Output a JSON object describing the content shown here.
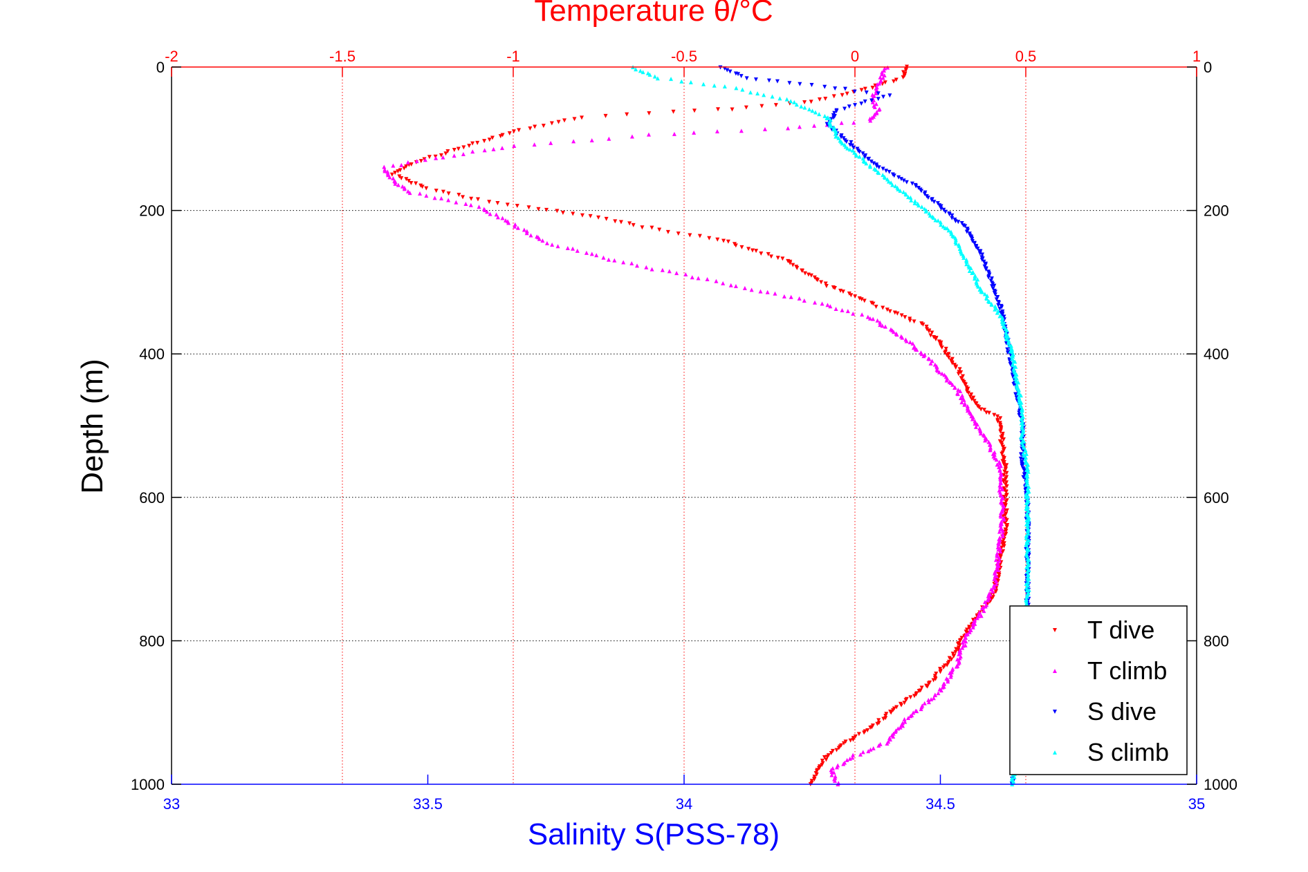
{
  "chart_data": {
    "type": "scatter",
    "title": "Temperature θ/°C",
    "xlabel_top": "Temperature θ/°C",
    "xlabel_bottom": "Salinity S(PSS-78)",
    "ylabel": "Depth (m)",
    "x_top_lim": [
      -2,
      1
    ],
    "x_top_ticks": [
      "-2",
      "-1.5",
      "-1",
      "-0.5",
      "0",
      "0.5",
      "1"
    ],
    "x_bottom_lim": [
      33,
      35
    ],
    "x_bottom_ticks": [
      "33",
      "33.5",
      "34",
      "34.5",
      "35"
    ],
    "ylim": [
      0,
      1000
    ],
    "y_reversed": true,
    "y_ticks": [
      "0",
      "200",
      "400",
      "600",
      "800",
      "1000"
    ],
    "y_tick_values": [
      0,
      200,
      400,
      600,
      800,
      1000
    ],
    "grid": true,
    "legend_position": "bottom-right",
    "colors": {
      "temperature_axis": "#ff0000",
      "salinity_axis": "#0000ff",
      "t_dive": "#ff0000",
      "t_climb": "#ff00ff",
      "s_dive": "#0000ff",
      "s_climb": "#00ffff"
    },
    "series": [
      {
        "name": "T dive",
        "axis": "temperature",
        "marker": "triangle-down",
        "color": "#ff0000",
        "points": [
          [
            0.15,
            0
          ],
          [
            0.14,
            15
          ],
          [
            0.0,
            35
          ],
          [
            -0.15,
            50
          ],
          [
            -0.4,
            60
          ],
          [
            -0.8,
            70
          ],
          [
            -1.0,
            90
          ],
          [
            -1.1,
            105
          ],
          [
            -1.2,
            120
          ],
          [
            -1.3,
            135
          ],
          [
            -1.35,
            150
          ],
          [
            -1.25,
            170
          ],
          [
            -1.1,
            185
          ],
          [
            -0.9,
            200
          ],
          [
            -0.75,
            210
          ],
          [
            -0.6,
            225
          ],
          [
            -0.4,
            240
          ],
          [
            -0.2,
            270
          ],
          [
            -0.1,
            300
          ],
          [
            0.0,
            320
          ],
          [
            0.1,
            340
          ],
          [
            0.2,
            360
          ],
          [
            0.25,
            385
          ],
          [
            0.3,
            420
          ],
          [
            0.33,
            450
          ],
          [
            0.35,
            470
          ],
          [
            0.42,
            490
          ],
          [
            0.43,
            520
          ],
          [
            0.44,
            560
          ],
          [
            0.44,
            600
          ],
          [
            0.44,
            640
          ],
          [
            0.43,
            670
          ],
          [
            0.42,
            700
          ],
          [
            0.41,
            730
          ],
          [
            0.37,
            760
          ],
          [
            0.33,
            785
          ],
          [
            0.29,
            820
          ],
          [
            0.22,
            860
          ],
          [
            0.13,
            890
          ],
          [
            0.05,
            920
          ],
          [
            -0.05,
            950
          ],
          [
            -0.1,
            970
          ],
          [
            -0.13,
            1000
          ]
        ]
      },
      {
        "name": "T climb",
        "axis": "temperature",
        "marker": "triangle-up",
        "color": "#ff00ff",
        "points": [
          [
            0.09,
            0
          ],
          [
            0.07,
            25
          ],
          [
            0.05,
            45
          ],
          [
            0.07,
            60
          ],
          [
            0.04,
            75
          ],
          [
            -0.2,
            85
          ],
          [
            -0.6,
            95
          ],
          [
            -1.0,
            110
          ],
          [
            -1.2,
            125
          ],
          [
            -1.38,
            140
          ],
          [
            -1.35,
            160
          ],
          [
            -1.3,
            175
          ],
          [
            -1.1,
            195
          ],
          [
            -1.0,
            220
          ],
          [
            -0.9,
            245
          ],
          [
            -0.7,
            270
          ],
          [
            -0.5,
            290
          ],
          [
            -0.3,
            310
          ],
          [
            -0.1,
            330
          ],
          [
            0.05,
            350
          ],
          [
            0.15,
            380
          ],
          [
            0.22,
            410
          ],
          [
            0.3,
            450
          ],
          [
            0.33,
            480
          ],
          [
            0.37,
            510
          ],
          [
            0.42,
            550
          ],
          [
            0.43,
            600
          ],
          [
            0.43,
            640
          ],
          [
            0.42,
            680
          ],
          [
            0.41,
            720
          ],
          [
            0.37,
            760
          ],
          [
            0.33,
            790
          ],
          [
            0.3,
            830
          ],
          [
            0.25,
            870
          ],
          [
            0.15,
            910
          ],
          [
            0.1,
            940
          ],
          [
            0.0,
            960
          ],
          [
            -0.07,
            980
          ],
          [
            -0.05,
            1000
          ]
        ]
      },
      {
        "name": "S dive",
        "axis": "salinity",
        "marker": "triangle-down",
        "color": "#0000ff",
        "points": [
          [
            34.07,
            0
          ],
          [
            34.12,
            15
          ],
          [
            34.25,
            25
          ],
          [
            34.4,
            40
          ],
          [
            34.3,
            60
          ],
          [
            34.28,
            80
          ],
          [
            34.33,
            110
          ],
          [
            34.38,
            140
          ],
          [
            34.45,
            165
          ],
          [
            34.5,
            195
          ],
          [
            34.55,
            225
          ],
          [
            34.58,
            260
          ],
          [
            34.6,
            300
          ],
          [
            34.62,
            340
          ],
          [
            34.63,
            380
          ],
          [
            34.64,
            420
          ],
          [
            34.65,
            460
          ],
          [
            34.66,
            500
          ],
          [
            34.66,
            550
          ],
          [
            34.67,
            600
          ],
          [
            34.67,
            650
          ],
          [
            34.67,
            700
          ],
          [
            34.67,
            750
          ],
          [
            34.66,
            800
          ],
          [
            34.66,
            850
          ],
          [
            34.65,
            900
          ],
          [
            34.65,
            950
          ],
          [
            34.64,
            1000
          ]
        ]
      },
      {
        "name": "S climb",
        "axis": "salinity",
        "marker": "triangle-up",
        "color": "#00ffff",
        "points": [
          [
            33.9,
            0
          ],
          [
            33.95,
            15
          ],
          [
            34.1,
            30
          ],
          [
            34.2,
            45
          ],
          [
            34.28,
            70
          ],
          [
            34.3,
            100
          ],
          [
            34.35,
            130
          ],
          [
            34.42,
            170
          ],
          [
            34.47,
            200
          ],
          [
            34.52,
            230
          ],
          [
            34.55,
            270
          ],
          [
            34.58,
            310
          ],
          [
            34.62,
            350
          ],
          [
            34.64,
            400
          ],
          [
            34.65,
            440
          ],
          [
            34.66,
            480
          ],
          [
            34.66,
            520
          ],
          [
            34.67,
            560
          ],
          [
            34.67,
            600
          ],
          [
            34.67,
            650
          ],
          [
            34.67,
            700
          ],
          [
            34.67,
            750
          ],
          [
            34.66,
            800
          ],
          [
            34.66,
            850
          ],
          [
            34.65,
            900
          ],
          [
            34.65,
            950
          ],
          [
            34.64,
            1000
          ]
        ]
      }
    ]
  }
}
